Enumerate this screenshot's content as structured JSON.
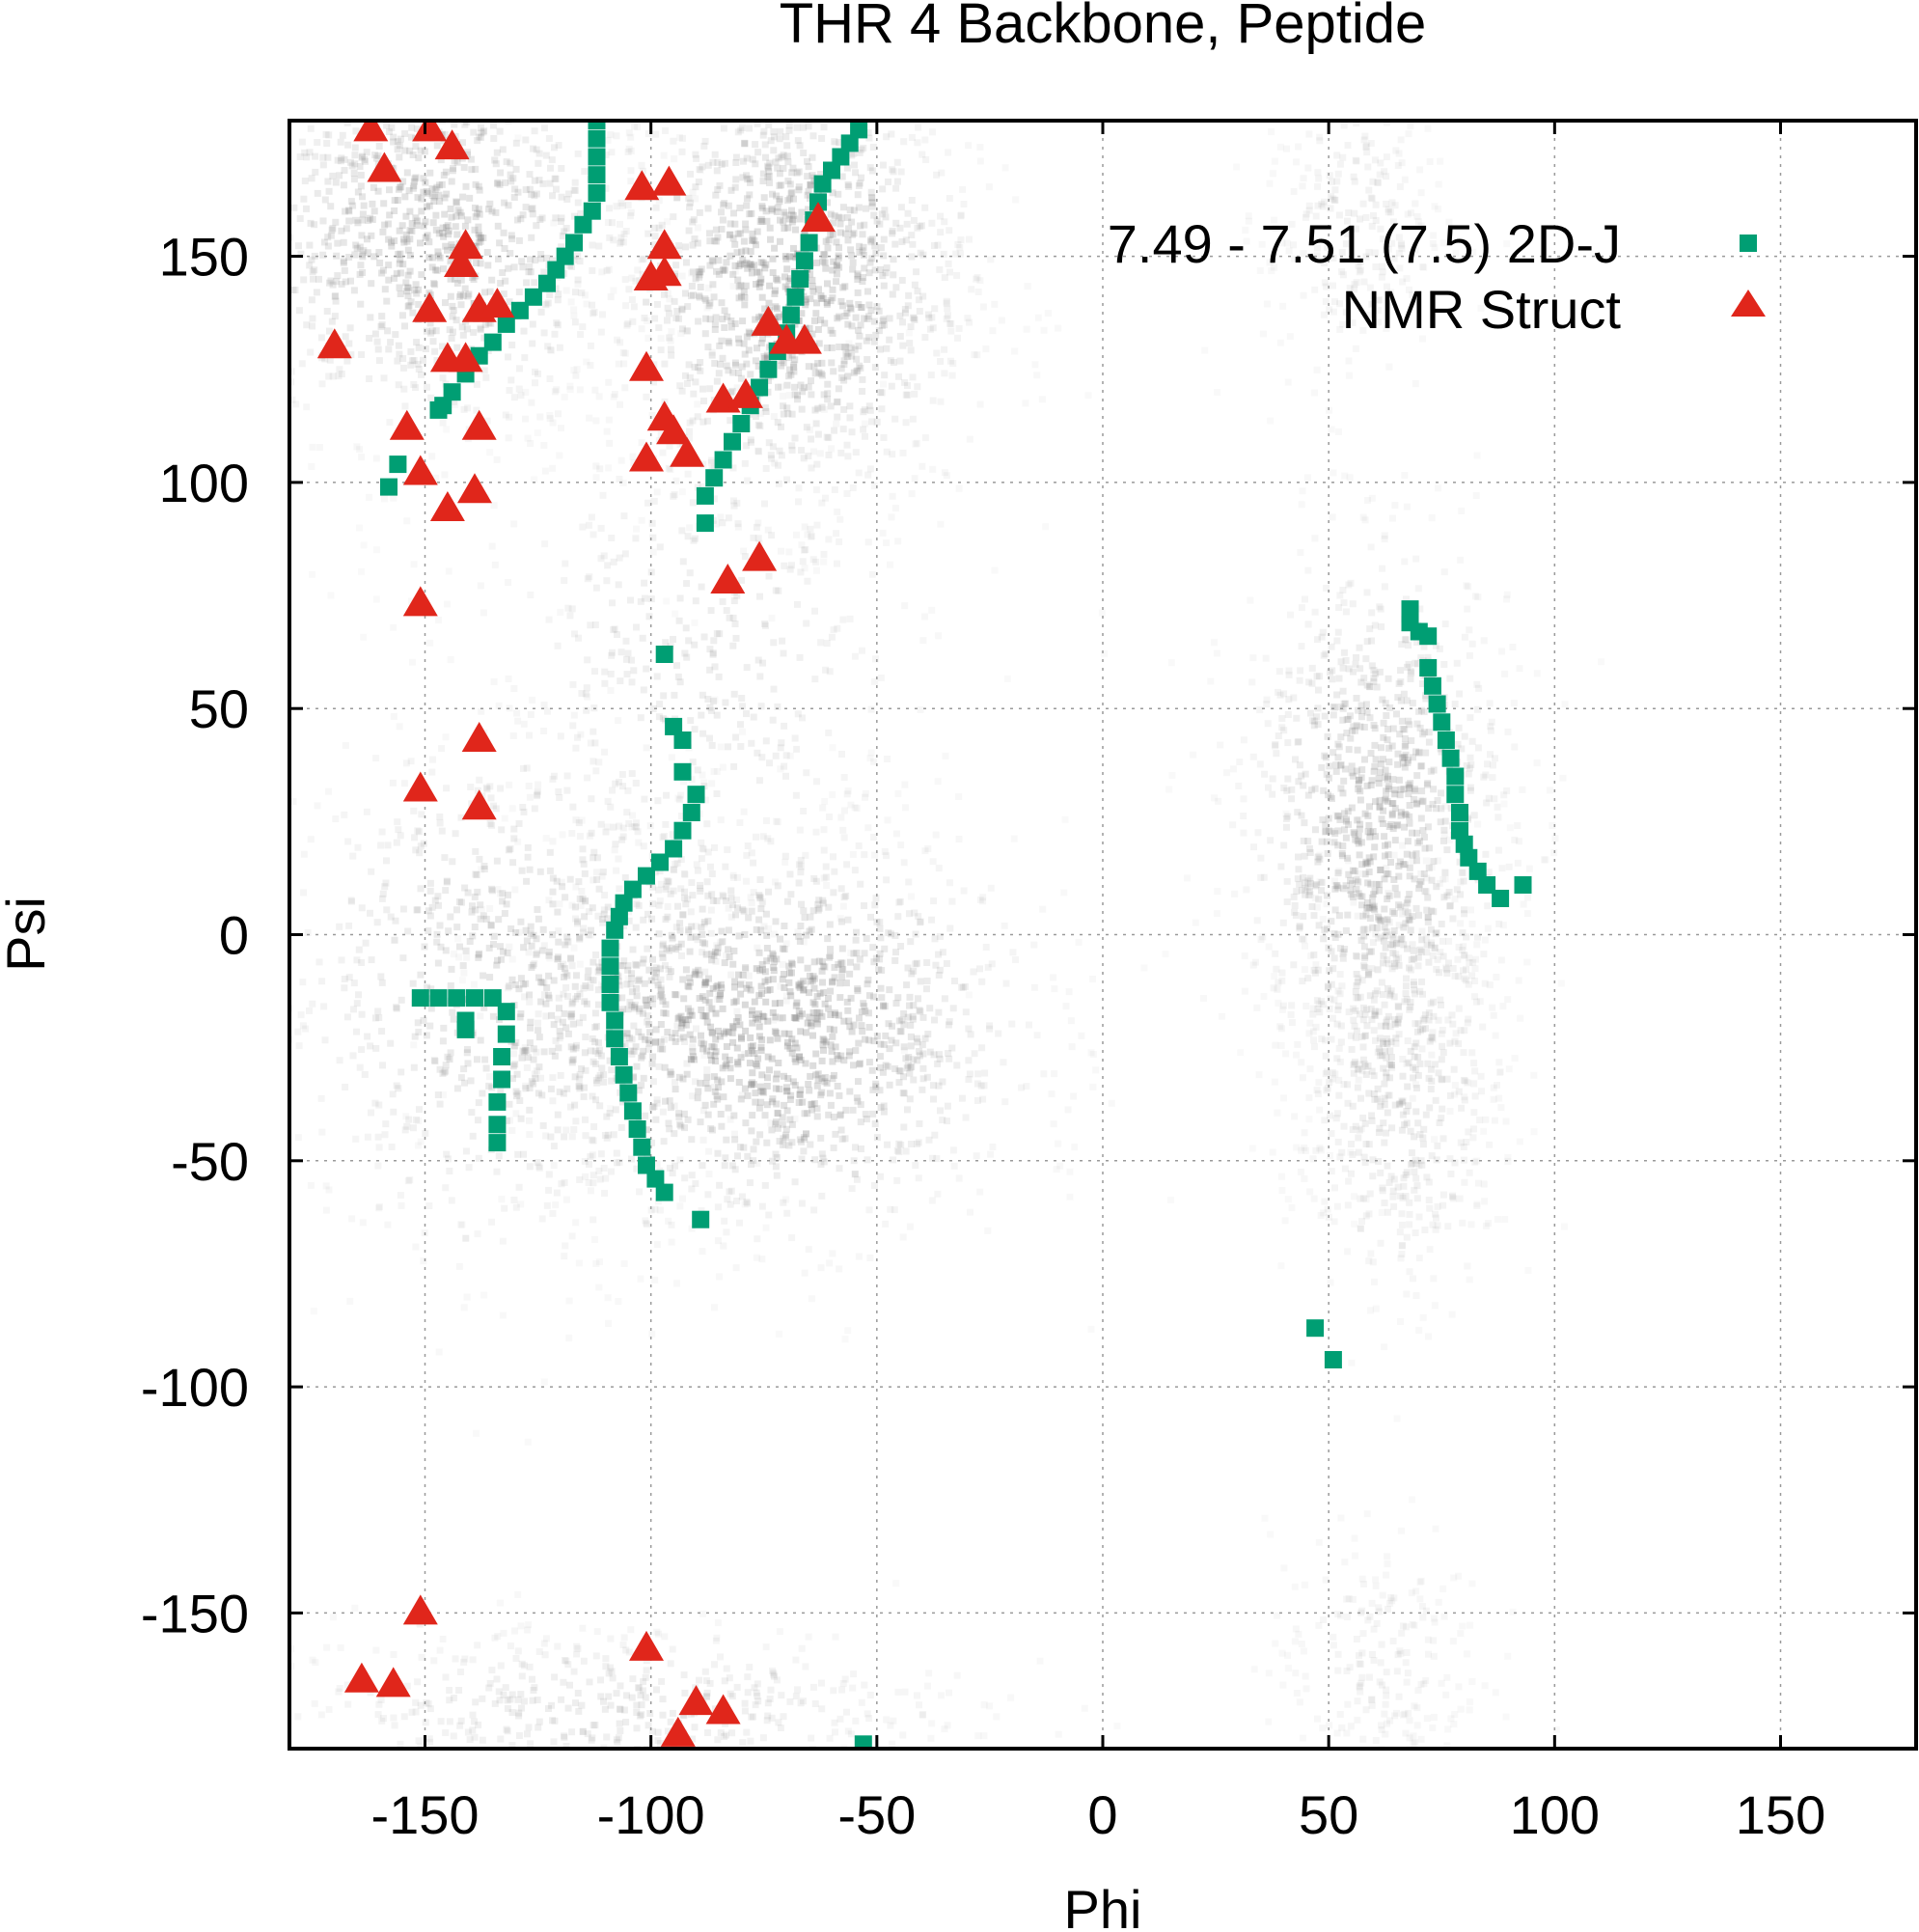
{
  "chart_data": {
    "type": "scatter",
    "title": "THR 4 Backbone, Peptide",
    "xlabel": "Phi",
    "ylabel": "Psi",
    "xlim": [
      -180,
      180
    ],
    "ylim": [
      -180,
      180
    ],
    "xticks": [
      -150,
      -100,
      -50,
      0,
      50,
      100,
      150
    ],
    "yticks": [
      -150,
      -100,
      -50,
      0,
      50,
      100,
      150
    ],
    "xtick_labels": [
      "-150",
      "-100",
      "-50",
      "0",
      "50",
      "100",
      "150"
    ],
    "ytick_labels": [
      "-150",
      "-100",
      "-50",
      "0",
      "50",
      "100",
      "150"
    ],
    "grid": true,
    "legend_position": "top-right",
    "background_density": {
      "color": "#808080",
      "regions": [
        {
          "phi": -150,
          "psi": 155,
          "sphi": 25,
          "spsi": 22,
          "weight": 0.75
        },
        {
          "phi": -70,
          "psi": 145,
          "sphi": 20,
          "spsi": 25,
          "weight": 0.9
        },
        {
          "phi": -75,
          "psi": -20,
          "sphi": 28,
          "spsi": 22,
          "weight": 1.0
        },
        {
          "phi": -130,
          "psi": -10,
          "sphi": 28,
          "spsi": 30,
          "weight": 0.6
        },
        {
          "phi": -90,
          "psi": 60,
          "sphi": 25,
          "spsi": 35,
          "weight": 0.35
        },
        {
          "phi": 60,
          "psi": 25,
          "sphi": 15,
          "spsi": 30,
          "weight": 0.75
        },
        {
          "phi": 65,
          "psi": -30,
          "sphi": 12,
          "spsi": 25,
          "weight": 0.4
        },
        {
          "phi": 55,
          "psi": 160,
          "sphi": 10,
          "spsi": 20,
          "weight": 0.2
        },
        {
          "phi": -110,
          "psi": -170,
          "sphi": 40,
          "spsi": 10,
          "weight": 0.35
        },
        {
          "phi": 60,
          "psi": -160,
          "sphi": 12,
          "spsi": 15,
          "weight": 0.15
        }
      ]
    },
    "series": [
      {
        "name": "7.49 - 7.51 (7.5) 2D-J",
        "marker": "square",
        "color": "#009e73",
        "points": [
          [
            -112,
            180
          ],
          [
            -112,
            176
          ],
          [
            -112,
            172
          ],
          [
            -112,
            168
          ],
          [
            -112,
            164
          ],
          [
            -113,
            160
          ],
          [
            -115,
            157
          ],
          [
            -117,
            153
          ],
          [
            -119,
            150
          ],
          [
            -121,
            147
          ],
          [
            -123,
            144
          ],
          [
            -126,
            141
          ],
          [
            -129,
            138
          ],
          [
            -132,
            135
          ],
          [
            -135,
            131
          ],
          [
            -138,
            128
          ],
          [
            -141,
            124
          ],
          [
            -144,
            120
          ],
          [
            -146,
            117
          ],
          [
            -147,
            116
          ],
          [
            -54,
            178
          ],
          [
            -56,
            175
          ],
          [
            -58,
            172
          ],
          [
            -60,
            169
          ],
          [
            -62,
            166
          ],
          [
            -63,
            162
          ],
          [
            -64,
            158
          ],
          [
            -65,
            153
          ],
          [
            -66,
            149
          ],
          [
            -67,
            145
          ],
          [
            -68,
            141
          ],
          [
            -69,
            137
          ],
          [
            -70,
            133
          ],
          [
            -72,
            129
          ],
          [
            -74,
            125
          ],
          [
            -76,
            121
          ],
          [
            -78,
            117
          ],
          [
            -80,
            113
          ],
          [
            -82,
            109
          ],
          [
            -84,
            105
          ],
          [
            -86,
            101
          ],
          [
            -88,
            97
          ],
          [
            -156,
            104
          ],
          [
            -158,
            99
          ],
          [
            -88,
            91
          ],
          [
            -97,
            62
          ],
          [
            -95,
            46
          ],
          [
            -93,
            43
          ],
          [
            -93,
            36
          ],
          [
            -90,
            31
          ],
          [
            -91,
            27
          ],
          [
            -93,
            23
          ],
          [
            -95,
            19
          ],
          [
            -98,
            16
          ],
          [
            -101,
            13
          ],
          [
            -104,
            10
          ],
          [
            -106,
            7
          ],
          [
            -107,
            4
          ],
          [
            -108,
            1
          ],
          [
            -109,
            -3
          ],
          [
            -109,
            -7
          ],
          [
            -109,
            -11
          ],
          [
            -109,
            -15
          ],
          [
            -108,
            -19
          ],
          [
            -108,
            -23
          ],
          [
            -107,
            -27
          ],
          [
            -106,
            -31
          ],
          [
            -105,
            -35
          ],
          [
            -104,
            -39
          ],
          [
            -103,
            -43
          ],
          [
            -102,
            -47
          ],
          [
            -101,
            -51
          ],
          [
            -99,
            -54
          ],
          [
            -97,
            -57
          ],
          [
            -89,
            -63
          ],
          [
            -151,
            -14
          ],
          [
            -147,
            -14
          ],
          [
            -143,
            -14
          ],
          [
            -139,
            -14
          ],
          [
            -135,
            -14
          ],
          [
            -141,
            -19
          ],
          [
            -141,
            -21
          ],
          [
            -132,
            -17
          ],
          [
            -132,
            -22
          ],
          [
            -133,
            -27
          ],
          [
            -133,
            -32
          ],
          [
            -134,
            -37
          ],
          [
            -134,
            -42
          ],
          [
            -134,
            -46
          ],
          [
            -53,
            -179
          ],
          [
            68,
            72
          ],
          [
            68,
            69
          ],
          [
            70,
            67
          ],
          [
            72,
            66
          ],
          [
            72,
            59
          ],
          [
            73,
            55
          ],
          [
            74,
            51
          ],
          [
            75,
            47
          ],
          [
            76,
            43
          ],
          [
            77,
            39
          ],
          [
            78,
            35
          ],
          [
            78,
            31
          ],
          [
            79,
            27
          ],
          [
            79,
            23
          ],
          [
            80,
            20
          ],
          [
            81,
            17
          ],
          [
            83,
            14
          ],
          [
            85,
            11
          ],
          [
            88,
            8
          ],
          [
            93,
            11
          ],
          [
            47,
            -87
          ],
          [
            51,
            -94
          ]
        ]
      },
      {
        "name": "NMR Struct",
        "marker": "triangle",
        "color": "#e0261b",
        "points": [
          [
            -162,
            178
          ],
          [
            -149,
            178
          ],
          [
            -144,
            174
          ],
          [
            -159,
            169
          ],
          [
            -102,
            165
          ],
          [
            -96,
            166
          ],
          [
            -63,
            158
          ],
          [
            -141,
            152
          ],
          [
            -142,
            148
          ],
          [
            -97,
            152
          ],
          [
            -100,
            145
          ],
          [
            -97,
            146
          ],
          [
            -149,
            138
          ],
          [
            -138,
            138
          ],
          [
            -134,
            139
          ],
          [
            -74,
            135
          ],
          [
            -70,
            131
          ],
          [
            -66,
            131
          ],
          [
            -170,
            130
          ],
          [
            -145,
            127
          ],
          [
            -141,
            127
          ],
          [
            -101,
            125
          ],
          [
            -84,
            118
          ],
          [
            -79,
            119
          ],
          [
            -154,
            112
          ],
          [
            -97,
            114
          ],
          [
            -95,
            111
          ],
          [
            -138,
            112
          ],
          [
            -151,
            102
          ],
          [
            -101,
            105
          ],
          [
            -92,
            106
          ],
          [
            -145,
            94
          ],
          [
            -139,
            98
          ],
          [
            -83,
            78
          ],
          [
            -76,
            83
          ],
          [
            -151,
            73
          ],
          [
            -138,
            43
          ],
          [
            -151,
            32
          ],
          [
            -138,
            28
          ],
          [
            -151,
            -150
          ],
          [
            -101,
            -158
          ],
          [
            -164,
            -165
          ],
          [
            -157,
            -166
          ],
          [
            -90,
            -170
          ],
          [
            -84,
            -172
          ],
          [
            -94,
            -177
          ]
        ]
      }
    ]
  }
}
